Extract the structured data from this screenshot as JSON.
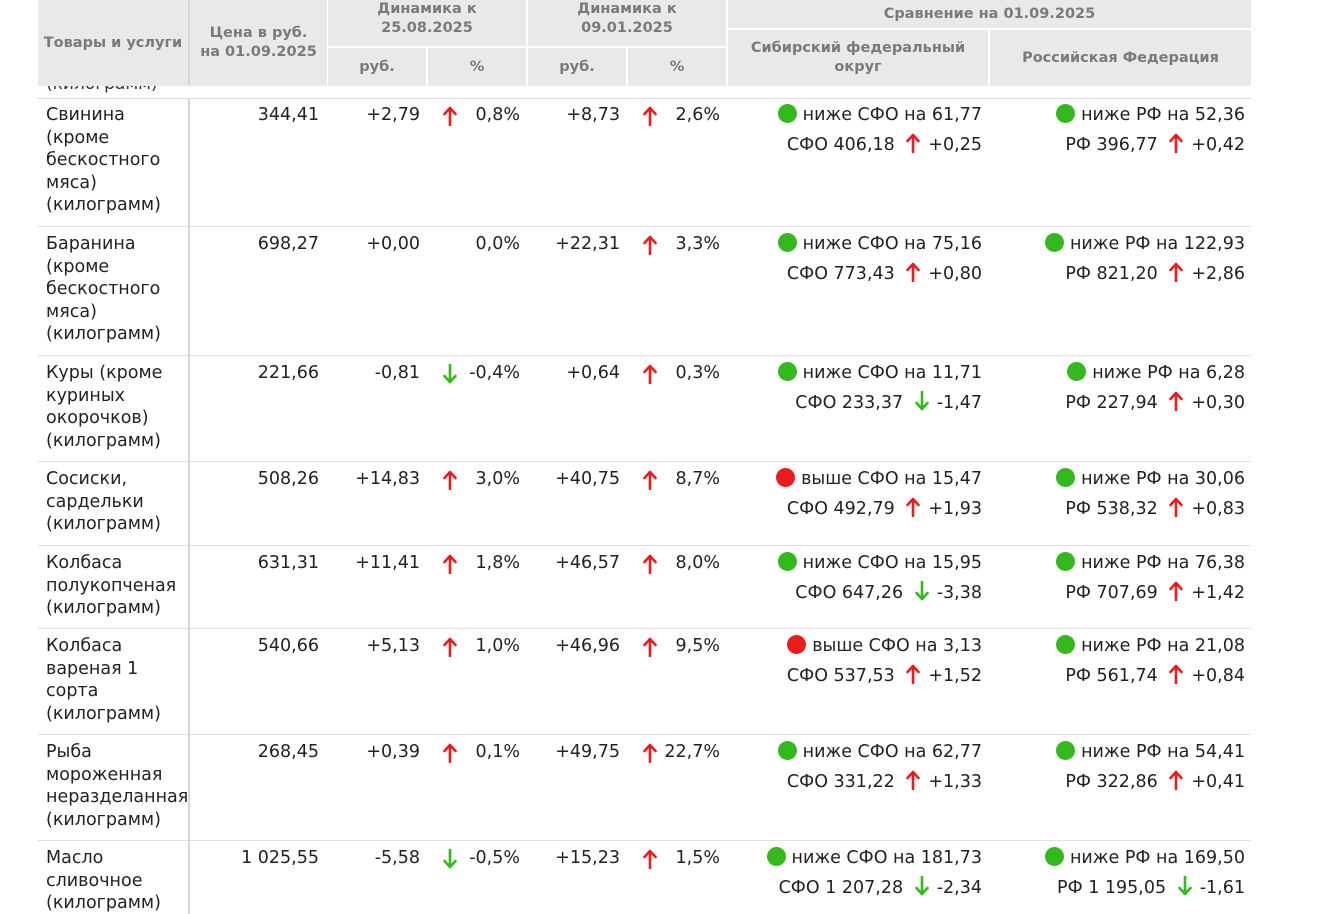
{
  "header": {
    "col_name": "Товары и услуги",
    "col_price": "Цена в руб. на 01.09.2025",
    "dyn1": "Динамика к 25.08.2025",
    "dyn2": "Динамика к 09.01.2025",
    "compare": "Сравнение на 01.09.2025",
    "sfo": "Сибирский федеральный округ",
    "rf": "Российская Федерация",
    "rub": "руб.",
    "pct": "%"
  },
  "partial_row_text": "(килограмм)",
  "colors": {
    "up": "#e81c1c",
    "down": "#33b81e",
    "dot_green": "#33b81e",
    "dot_red": "#e81c1c",
    "header_bg": "#e9e9e9",
    "header_text": "#7a7a7a"
  },
  "rows": [
    {
      "name": "Свинина (кроме бескостного мяса) (килограмм)",
      "price": "344,41",
      "d1_rub": "+2,79",
      "d1_dir": "up",
      "d1_pct": "0,8%",
      "d2_rub": "+8,73",
      "d2_dir": "up",
      "d2_pct": "2,6%",
      "sfo_status": "green",
      "sfo_text": "ниже СФО на 61,77",
      "sfo_val": "СФО 406,18",
      "sfo_dir": "up",
      "sfo_change": "+0,25",
      "rf_status": "green",
      "rf_text": "ниже РФ на 52,36",
      "rf_val": "РФ 396,77",
      "rf_dir": "up",
      "rf_change": "+0,42"
    },
    {
      "name": "Баранина (кроме бескостного мяса) (килограмм)",
      "price": "698,27",
      "d1_rub": "+0,00",
      "d1_dir": "none",
      "d1_pct": "0,0%",
      "d2_rub": "+22,31",
      "d2_dir": "up",
      "d2_pct": "3,3%",
      "sfo_status": "green",
      "sfo_text": "ниже СФО на 75,16",
      "sfo_val": "СФО 773,43",
      "sfo_dir": "up",
      "sfo_change": "+0,80",
      "rf_status": "green",
      "rf_text": "ниже РФ на 122,93",
      "rf_val": "РФ 821,20",
      "rf_dir": "up",
      "rf_change": "+2,86"
    },
    {
      "name": "Куры (кроме куриных окорочков) (килограмм)",
      "price": "221,66",
      "d1_rub": "-0,81",
      "d1_dir": "down",
      "d1_pct": "-0,4%",
      "d2_rub": "+0,64",
      "d2_dir": "up",
      "d2_pct": "0,3%",
      "sfo_status": "green",
      "sfo_text": "ниже СФО на 11,71",
      "sfo_val": "СФО 233,37",
      "sfo_dir": "down",
      "sfo_change": "-1,47",
      "rf_status": "green",
      "rf_text": "ниже РФ на 6,28",
      "rf_val": "РФ 227,94",
      "rf_dir": "up",
      "rf_change": "+0,30"
    },
    {
      "name": "Сосиски, сардельки (килограмм)",
      "price": "508,26",
      "d1_rub": "+14,83",
      "d1_dir": "up",
      "d1_pct": "3,0%",
      "d2_rub": "+40,75",
      "d2_dir": "up",
      "d2_pct": "8,7%",
      "sfo_status": "red",
      "sfo_text": "выше СФО на 15,47",
      "sfo_val": "СФО 492,79",
      "sfo_dir": "up",
      "sfo_change": "+1,93",
      "rf_status": "green",
      "rf_text": "ниже РФ на 30,06",
      "rf_val": "РФ 538,32",
      "rf_dir": "up",
      "rf_change": "+0,83"
    },
    {
      "name": "Колбаса полукопченая (килограмм)",
      "price": "631,31",
      "d1_rub": "+11,41",
      "d1_dir": "up",
      "d1_pct": "1,8%",
      "d2_rub": "+46,57",
      "d2_dir": "up",
      "d2_pct": "8,0%",
      "sfo_status": "green",
      "sfo_text": "ниже СФО на 15,95",
      "sfo_val": "СФО 647,26",
      "sfo_dir": "down",
      "sfo_change": "-3,38",
      "rf_status": "green",
      "rf_text": "ниже РФ на 76,38",
      "rf_val": "РФ 707,69",
      "rf_dir": "up",
      "rf_change": "+1,42"
    },
    {
      "name": "Колбаса вареная 1 сорта (килограмм)",
      "price": "540,66",
      "d1_rub": "+5,13",
      "d1_dir": "up",
      "d1_pct": "1,0%",
      "d2_rub": "+46,96",
      "d2_dir": "up",
      "d2_pct": "9,5%",
      "sfo_status": "red",
      "sfo_text": "выше СФО на 3,13",
      "sfo_val": "СФО 537,53",
      "sfo_dir": "up",
      "sfo_change": "+1,52",
      "rf_status": "green",
      "rf_text": "ниже РФ на 21,08",
      "rf_val": "РФ 561,74",
      "rf_dir": "up",
      "rf_change": "+0,84"
    },
    {
      "name": "Рыба мороженная неразделанная (килограмм)",
      "price": "268,45",
      "d1_rub": "+0,39",
      "d1_dir": "up",
      "d1_pct": "0,1%",
      "d2_rub": "+49,75",
      "d2_dir": "up",
      "d2_pct": "22,7%",
      "sfo_status": "green",
      "sfo_text": "ниже СФО на 62,77",
      "sfo_val": "СФО 331,22",
      "sfo_dir": "up",
      "sfo_change": "+1,33",
      "rf_status": "green",
      "rf_text": "ниже РФ на 54,41",
      "rf_val": "РФ 322,86",
      "rf_dir": "up",
      "rf_change": "+0,41"
    },
    {
      "name": "Масло сливочное (килограмм)",
      "price": "1 025,55",
      "d1_rub": "-5,58",
      "d1_dir": "down",
      "d1_pct": "-0,5%",
      "d2_rub": "+15,23",
      "d2_dir": "up",
      "d2_pct": "1,5%",
      "sfo_status": "green",
      "sfo_text": "ниже СФО на 181,73",
      "sfo_val": "СФО 1 207,28",
      "sfo_dir": "down",
      "sfo_change": "-2,34",
      "rf_status": "green",
      "rf_text": "ниже РФ на 169,50",
      "rf_val": "РФ 1 195,05",
      "rf_dir": "down",
      "rf_change": "-1,61"
    }
  ]
}
